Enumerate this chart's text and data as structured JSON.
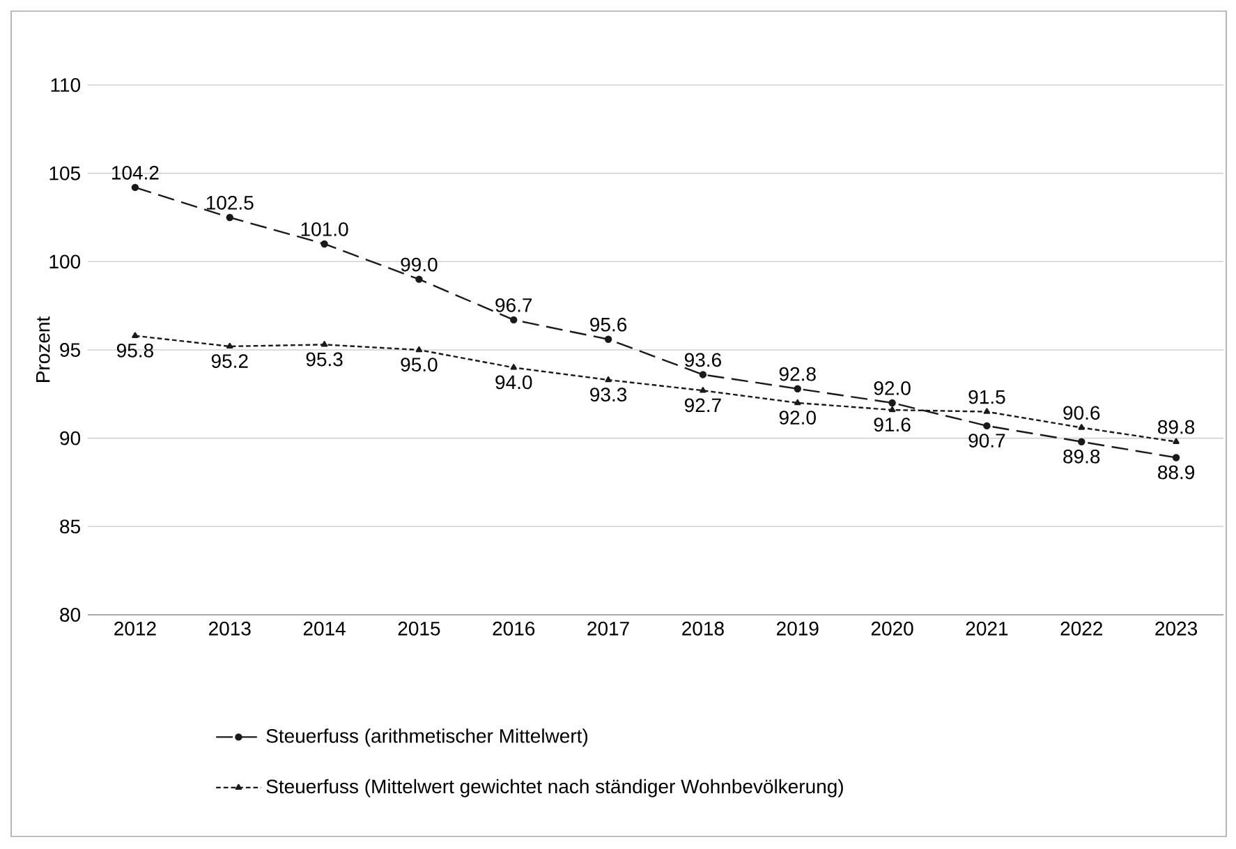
{
  "chart_data": {
    "type": "line",
    "ylabel": "Prozent",
    "categories": [
      "2012",
      "2013",
      "2014",
      "2015",
      "2016",
      "2017",
      "2018",
      "2019",
      "2020",
      "2021",
      "2022",
      "2023"
    ],
    "series": [
      {
        "name": "Steuerfuss (arithmetischer Mittelwert)",
        "color": "#1a1a1a",
        "line_style": "dashed",
        "marker": "circle",
        "values": [
          104.2,
          102.5,
          101.0,
          99.0,
          96.7,
          95.6,
          93.6,
          92.8,
          92.0,
          90.7,
          89.8,
          88.9
        ],
        "value_labels": [
          "104.2",
          "102.5",
          "101.0",
          "99.0",
          "96.7",
          "95.6",
          "93.6",
          "92.8",
          "92.0",
          "90.7",
          "89.8",
          "88.9"
        ]
      },
      {
        "name": "Steuerfuss (Mittelwert gewichtet nach ständiger Wohnbevölkerung)",
        "color": "#1a1a1a",
        "line_style": "dotted",
        "marker": "triangle",
        "values": [
          95.8,
          95.2,
          95.3,
          95.0,
          94.0,
          93.3,
          92.7,
          92.0,
          91.6,
          91.5,
          90.6,
          89.8
        ],
        "value_labels": [
          "95.8",
          "95.2",
          "95.3",
          "95.0",
          "94.0",
          "93.3",
          "92.7",
          "92.0",
          "91.6",
          "91.5",
          "90.6",
          "89.8"
        ]
      }
    ],
    "ylim": [
      80,
      110
    ],
    "yticks": [
      80,
      85,
      90,
      95,
      100,
      105,
      110
    ],
    "grid": "y",
    "legend": "bottom"
  }
}
